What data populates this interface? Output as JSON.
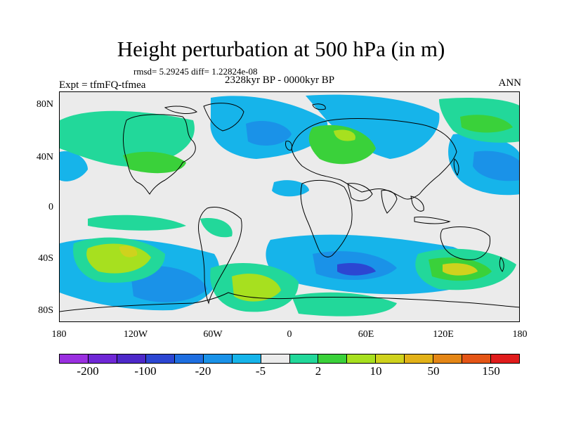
{
  "title": "Height perturbation at 500 hPa (in m)",
  "stats": "rmsd= 5.29245 diff= 1.22824e-08",
  "period": "2328kyr BP - 0000kyr BP",
  "experiment": "Expt = tfmFQ-tfmea",
  "season": "ANN",
  "y_ticks": [
    "80N",
    "40N",
    "0",
    "40S",
    "80S"
  ],
  "x_ticks": [
    "180",
    "120W",
    "60W",
    "0",
    "60E",
    "120E",
    "180"
  ],
  "colorbar": {
    "colors": [
      "#9a2fe0",
      "#6f27d6",
      "#4d28c9",
      "#2c46d2",
      "#1e6ee0",
      "#1a92e8",
      "#16b4ea",
      "#ebebeb",
      "#22d89a",
      "#3ad13a",
      "#a7e01f",
      "#cfd21d",
      "#e2b118",
      "#e48616",
      "#e45516",
      "#e01c1c"
    ],
    "labels": [
      "-200",
      "-100",
      "-20",
      "-5",
      "2",
      "10",
      "50",
      "150"
    ]
  },
  "field_colors": {
    "background": "#ebebeb",
    "pos_weak": "#22d89a",
    "pos_mid": "#3ad13a",
    "pos_strong": "#a7e01f",
    "pos_peak": "#cfd21d",
    "neg_weak": "#16b4ea",
    "neg_mid": "#1a92e8",
    "neg_strong": "#1e6ee0",
    "neg_peak": "#2c46d2",
    "coast": "#000000"
  }
}
